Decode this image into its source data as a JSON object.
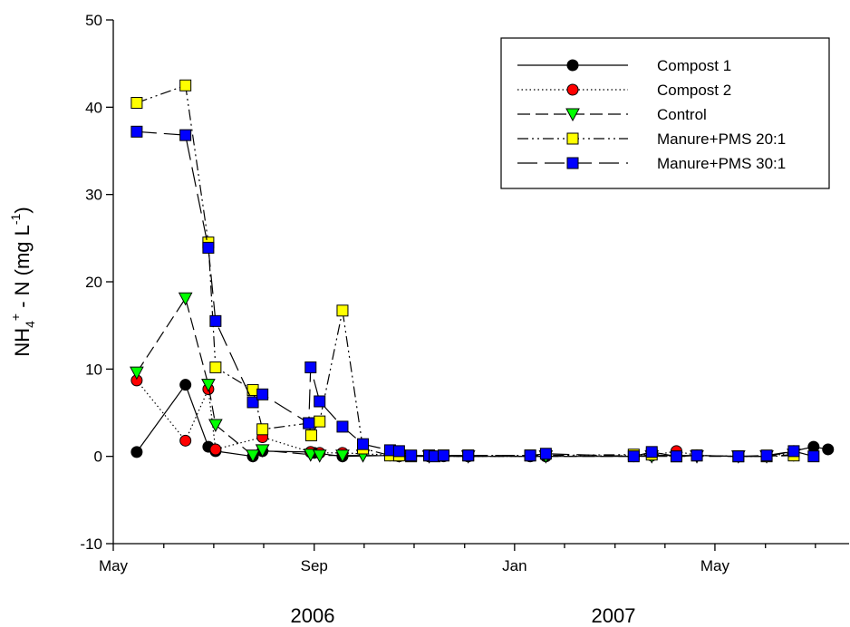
{
  "chart_data": {
    "type": "line",
    "y_label_parts": [
      "NH",
      "4",
      "+",
      " - N (mg L",
      "-1",
      ")"
    ],
    "year_labels": [
      "2006",
      "2007"
    ],
    "xlim": [
      2006.333,
      2007.556
    ],
    "xticks": [
      {
        "value": 2006.333,
        "label": "May"
      },
      {
        "value": 2006.667,
        "label": "Sep"
      },
      {
        "value": 2007.0,
        "label": "Jan"
      },
      {
        "value": 2007.333,
        "label": "May"
      }
    ],
    "xminorticks": [
      2006.417,
      2006.5,
      2006.583,
      2006.75,
      2006.833,
      2006.917,
      2007.083,
      2007.167,
      2007.25,
      2007.417,
      2007.5
    ],
    "ylim": [
      -10,
      50
    ],
    "yticks": [
      -10,
      0,
      10,
      20,
      30,
      40,
      50
    ],
    "legend": "upper right",
    "series": [
      {
        "name": "Compost 1",
        "color": "#000000",
        "marker": "circle",
        "dash": "solid",
        "x": [
          2006.372,
          2006.453,
          2006.491,
          2006.503,
          2006.565,
          2006.581,
          2006.661,
          2006.667,
          2006.714,
          2006.793,
          2006.808,
          2006.858,
          2006.882,
          2006.923,
          2007.026,
          2007.052,
          2007.198,
          2007.228,
          2007.269,
          2007.303,
          2007.372,
          2007.419,
          2007.464,
          2007.497,
          2007.521
        ],
        "values": [
          0.5,
          8.2,
          1.1,
          0.6,
          0.0,
          0.6,
          0.5,
          0.4,
          0.0,
          0.1,
          0.0,
          0.0,
          0.0,
          0.0,
          0.0,
          0.0,
          0.0,
          0.1,
          0.1,
          0.1,
          0.0,
          0.0,
          0.6,
          1.1,
          0.8
        ]
      },
      {
        "name": "Compost 2",
        "color": "#ff0000",
        "marker": "circle",
        "dash": "dotted",
        "x": [
          2006.372,
          2006.453,
          2006.491,
          2006.503,
          2006.581,
          2006.661,
          2006.676,
          2006.714,
          2006.808,
          2006.858,
          2006.923,
          2007.026,
          2007.228,
          2007.269,
          2007.303,
          2007.372,
          2007.419,
          2007.464
        ],
        "values": [
          8.7,
          1.8,
          7.7,
          0.8,
          2.2,
          0.5,
          0.4,
          0.4,
          0.1,
          0.0,
          0.0,
          0.0,
          0.1,
          0.6,
          0.1,
          0.0,
          0.0,
          0.4
        ]
      },
      {
        "name": "Control",
        "color": "#00ff00",
        "marker": "triangle-down",
        "dash": "dashed",
        "x": [
          2006.372,
          2006.453,
          2006.491,
          2006.503,
          2006.565,
          2006.581,
          2006.661,
          2006.676,
          2006.714,
          2006.748,
          2006.808,
          2006.858,
          2006.923,
          2007.052,
          2007.228,
          2007.303,
          2007.372,
          2007.419,
          2007.464
        ],
        "values": [
          9.6,
          18.1,
          8.2,
          3.6,
          0.1,
          0.7,
          0.2,
          0.1,
          0.1,
          0.1,
          0.1,
          0.0,
          0.0,
          0.0,
          0.0,
          0.0,
          0.0,
          0.0,
          0.2
        ]
      },
      {
        "name": "Manure+PMS 20:1",
        "color": "#ffff00",
        "marker": "square",
        "dash": "dashdotdot",
        "x": [
          2006.372,
          2006.453,
          2006.491,
          2006.503,
          2006.565,
          2006.581,
          2006.658,
          2006.662,
          2006.676,
          2006.714,
          2006.748,
          2006.793,
          2006.808,
          2006.828,
          2006.858,
          2006.882,
          2006.923,
          2007.026,
          2007.198,
          2007.228,
          2007.269,
          2007.303,
          2007.372,
          2007.419,
          2007.464
        ],
        "values": [
          40.5,
          42.5,
          24.5,
          10.2,
          7.6,
          3.1,
          3.8,
          2.4,
          4.0,
          16.7,
          0.9,
          0.1,
          0.1,
          0.0,
          0.1,
          0.1,
          0.1,
          0.1,
          0.2,
          0.2,
          0.0,
          0.1,
          0.0,
          0.0,
          0.1
        ]
      },
      {
        "name": "Manure+PMS 30:1",
        "color": "#0000ff",
        "marker": "square",
        "dash": "longdash",
        "x": [
          2006.372,
          2006.453,
          2006.491,
          2006.503,
          2006.565,
          2006.581,
          2006.658,
          2006.661,
          2006.676,
          2006.714,
          2006.748,
          2006.793,
          2006.808,
          2006.828,
          2006.858,
          2006.867,
          2006.882,
          2006.923,
          2007.026,
          2007.052,
          2007.198,
          2007.228,
          2007.269,
          2007.303,
          2007.372,
          2007.419,
          2007.464,
          2007.497
        ],
        "values": [
          37.2,
          36.8,
          23.9,
          15.5,
          6.2,
          7.1,
          3.8,
          10.2,
          6.3,
          3.4,
          1.4,
          0.7,
          0.6,
          0.1,
          0.1,
          0.0,
          0.1,
          0.1,
          0.1,
          0.3,
          0.0,
          0.5,
          0.0,
          0.1,
          0.0,
          0.1,
          0.6,
          0.0
        ]
      }
    ]
  }
}
